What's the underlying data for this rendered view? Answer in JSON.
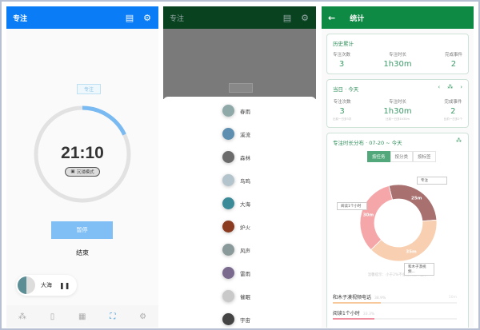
{
  "focus_screen": {
    "header": {
      "title": "专注",
      "stats_icon": "bar-chart-icon",
      "settings_icon": "gear-icon"
    },
    "mode_tag": "专注",
    "progress": 0.18,
    "time": "21:10",
    "immersive_label": "沉浸模式",
    "pause_label": "暂停",
    "end_label": "结束",
    "player": {
      "sound": "大海",
      "icon": "pause-icon"
    },
    "accent": "#0a7cf6",
    "nav": [
      "share-nodes-icon",
      "clipboard-icon",
      "calendar-icon",
      "focus-icon",
      "gear-icon"
    ]
  },
  "sound_screen": {
    "header": {
      "title": "专注"
    },
    "sounds": [
      {
        "name": "春雨",
        "color": "#8fa8a8"
      },
      {
        "name": "溪流",
        "color": "#5e8fb0"
      },
      {
        "name": "森林",
        "color": "#6b6b6b"
      },
      {
        "name": "鸟鸣",
        "color": "#b3c4cc"
      },
      {
        "name": "大海",
        "color": "#3b8a98"
      },
      {
        "name": "炉火",
        "color": "#8a3b20"
      },
      {
        "name": "风声",
        "color": "#8a9a9a"
      },
      {
        "name": "雷雨",
        "color": "#7a6a8e"
      },
      {
        "name": "催眠",
        "color": "#c9c9c9"
      },
      {
        "name": "宇宙",
        "color": "#444444"
      }
    ]
  },
  "stats_screen": {
    "header": {
      "title": "统计",
      "back_icon": "arrow-left-icon"
    },
    "history": {
      "title": "历史累计",
      "items": [
        {
          "label": "专注次数",
          "value": "3"
        },
        {
          "label": "专注时长",
          "value": "1h30m"
        },
        {
          "label": "完成事件",
          "value": "2"
        }
      ]
    },
    "day": {
      "title": "当日 · 今天",
      "items": [
        {
          "label": "专注次数",
          "value": "3",
          "sub": "比前一日多3次"
        },
        {
          "label": "专注时长",
          "value": "1h30m",
          "sub": "比前一日多1h30m"
        },
        {
          "label": "完成事件",
          "value": "2",
          "sub": "比前一日多2个"
        }
      ]
    },
    "distribution": {
      "title": "专注时长分布 · 07-20 ~ 今天",
      "tabs": [
        "按任务",
        "按分类",
        "按标签"
      ],
      "active_tab": "按任务",
      "hint": "温馨提示：小于2%不会在饼图中显示",
      "right_value": "50m"
    },
    "chart_data": {
      "type": "pie",
      "donut": true,
      "slices": [
        {
          "label": "专注",
          "value": 25,
          "display": "25m",
          "color": "#a87170"
        },
        {
          "label": "和木子漠视频...",
          "value": 35,
          "display": "35m",
          "color": "#f8cfb0"
        },
        {
          "label": "阅读1个小时",
          "value": 30,
          "display": "30m",
          "color": "#f5a6a8"
        }
      ]
    },
    "bars": [
      {
        "label": "和木子漠视频电话",
        "percent": "38.9%",
        "fraction": 0.389,
        "color": "#f6c89a"
      },
      {
        "label": "阅读1个小时",
        "percent": "33.3%",
        "fraction": 0.333,
        "color": "#ef8fa0"
      }
    ]
  }
}
